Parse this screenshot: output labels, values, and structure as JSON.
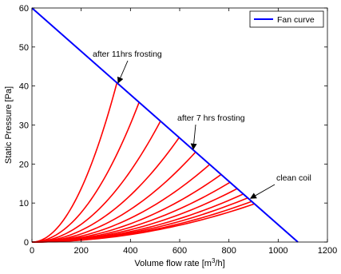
{
  "chart_data": {
    "type": "line",
    "xlabel": "Volume flow rate [m³/h]",
    "xlabel_parts": {
      "pre": "Volume flow rate [m",
      "sup": "3",
      "post": "/h]"
    },
    "ylabel": "Static Pressure [Pa]",
    "xlim": [
      0,
      1200
    ],
    "ylim": [
      0,
      60
    ],
    "xticks": [
      0,
      200,
      400,
      600,
      800,
      1000,
      1200
    ],
    "yticks": [
      0,
      10,
      20,
      30,
      40,
      50,
      60
    ],
    "grid": false,
    "legend_position": "top-right",
    "colors": {
      "fan_curve": "#0000ff",
      "system_curves": "#ff0000"
    },
    "fan_curve": {
      "name": "Fan curve",
      "x": [
        0,
        1080
      ],
      "y": [
        60,
        0
      ]
    },
    "system_curves": {
      "exponent": 2,
      "intersections": [
        {
          "x": 345,
          "y": 40.8
        },
        {
          "x": 435,
          "y": 35.8
        },
        {
          "x": 522,
          "y": 31.0
        },
        {
          "x": 598,
          "y": 26.8
        },
        {
          "x": 665,
          "y": 23.1
        },
        {
          "x": 722,
          "y": 19.9
        },
        {
          "x": 768,
          "y": 17.3
        },
        {
          "x": 804,
          "y": 15.3
        },
        {
          "x": 834,
          "y": 13.7
        },
        {
          "x": 858,
          "y": 12.3
        },
        {
          "x": 876,
          "y": 11.3
        },
        {
          "x": 892,
          "y": 10.4
        },
        {
          "x": 904,
          "y": 9.8
        }
      ]
    },
    "annotations": [
      {
        "text": "after 11hrs frosting",
        "x": 350,
        "y": 40.8
      },
      {
        "text": "after 7 hrs frosting",
        "x": 655,
        "y": 23.8
      },
      {
        "text": "clean coil",
        "x": 888,
        "y": 11.2
      }
    ]
  }
}
